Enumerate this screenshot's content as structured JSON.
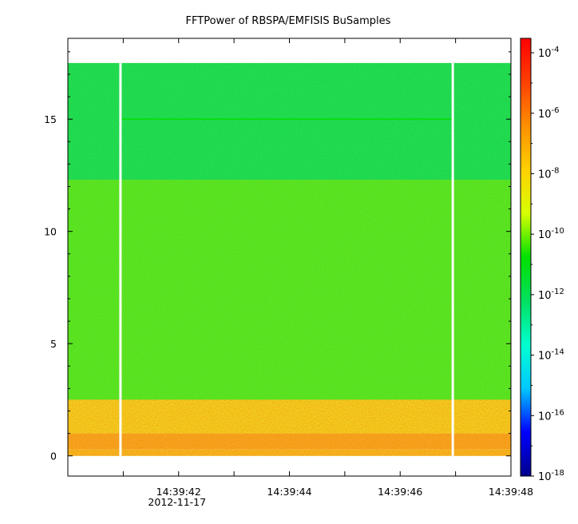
{
  "chart_data": {
    "type": "heatmap",
    "title": "FFTPower of RBSPA/EMFISIS  BuSamples",
    "xlabel": "",
    "ylabel": "",
    "x_range": [
      "14:39:40.0",
      "14:39:48.0"
    ],
    "x_ticks": [
      {
        "time": "14:39:41",
        "label": ""
      },
      {
        "time": "14:39:42",
        "label": "14:39:42",
        "sublabel": "2012-11-17"
      },
      {
        "time": "14:39:43",
        "label": ""
      },
      {
        "time": "14:39:44",
        "label": "14:39:44"
      },
      {
        "time": "14:39:45",
        "label": ""
      },
      {
        "time": "14:39:46",
        "label": "14:39:46"
      },
      {
        "time": "14:39:47",
        "label": ""
      },
      {
        "time": "14:39:48",
        "label": "14:39:48"
      }
    ],
    "ylim": [
      -0.9,
      18.6
    ],
    "y_ticks": [
      0,
      5,
      10,
      15
    ],
    "y_tick_labels": [
      "0",
      "5",
      "10",
      "15"
    ],
    "data_y_range": [
      0,
      17.5
    ],
    "data_gaps_time": [
      "14:39:40.95",
      "14:39:46.95"
    ],
    "colorbar": {
      "scale": "log",
      "range": [
        1e-18,
        0.0003
      ],
      "tick_base": "10",
      "tick_exponents": [
        "-4",
        "-6",
        "-8",
        "-10",
        "-12",
        "-14",
        "-16",
        "-18"
      ],
      "colormap": [
        "#00008b",
        "#0000ff",
        "#00c8ff",
        "#00ffd0",
        "#00e060",
        "#00e000",
        "#d8ff00",
        "#ffd000",
        "#ff9000",
        "#ff4000",
        "#ff0000"
      ]
    },
    "power_profile": [
      {
        "y_range": [
          0,
          0.3
        ],
        "log_power": -7.3
      },
      {
        "y_range": [
          0.3,
          1.0
        ],
        "log_power": -6.8
      },
      {
        "y_range": [
          1.0,
          2.5
        ],
        "log_power": -8.0
      },
      {
        "y_range": [
          2.5,
          12.3
        ],
        "log_power": -10.3
      },
      {
        "y_range": [
          12.3,
          17.5
        ],
        "log_power": -11.6
      }
    ],
    "feature_line": {
      "y": 15.0,
      "log_power": -10.8
    }
  }
}
